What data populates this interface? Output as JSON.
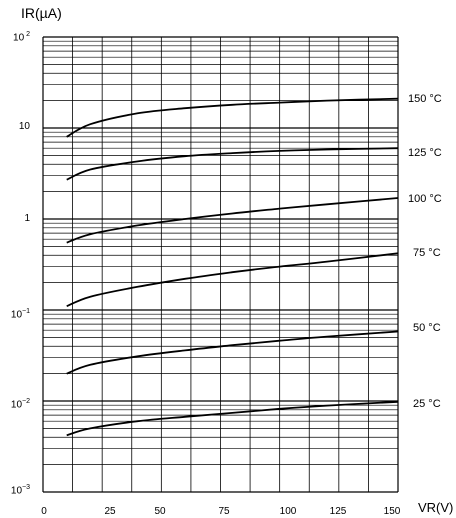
{
  "chart_data": {
    "type": "line",
    "ylabel": "IR(µA)",
    "xlabel": "VR(V)",
    "yscale": "log",
    "xlim": [
      0,
      150
    ],
    "ylim": [
      0.001,
      100
    ],
    "grid": true,
    "x_ticks": [
      "0",
      "25",
      "50",
      "75",
      "100",
      "125",
      "150"
    ],
    "y_ticks": [
      "10 2",
      "10",
      "1",
      "10-1",
      "10-2",
      "10-3"
    ],
    "series": [
      {
        "name": "150 °C",
        "x": [
          10,
          20,
          40,
          60,
          80,
          100,
          120,
          150
        ],
        "values": [
          8,
          11,
          14.5,
          16.5,
          18,
          19,
          20,
          21
        ]
      },
      {
        "name": "125 °C",
        "x": [
          10,
          20,
          40,
          60,
          80,
          100,
          120,
          150
        ],
        "values": [
          2.7,
          3.5,
          4.3,
          4.9,
          5.3,
          5.6,
          5.8,
          6
        ]
      },
      {
        "name": "100 °C",
        "x": [
          10,
          20,
          40,
          60,
          80,
          100,
          120,
          150
        ],
        "values": [
          0.55,
          0.68,
          0.85,
          1.0,
          1.15,
          1.3,
          1.45,
          1.7
        ]
      },
      {
        "name": "75 °C",
        "x": [
          10,
          20,
          40,
          60,
          80,
          100,
          120,
          150
        ],
        "values": [
          0.11,
          0.14,
          0.18,
          0.22,
          0.26,
          0.3,
          0.34,
          0.42
        ]
      },
      {
        "name": "50 °C",
        "x": [
          10,
          20,
          40,
          60,
          80,
          100,
          120,
          150
        ],
        "values": [
          0.02,
          0.025,
          0.031,
          0.036,
          0.041,
          0.046,
          0.051,
          0.058
        ]
      },
      {
        "name": "25 °C",
        "x": [
          10,
          20,
          40,
          60,
          80,
          100,
          120,
          150
        ],
        "values": [
          0.0042,
          0.005,
          0.006,
          0.0067,
          0.0074,
          0.0082,
          0.0089,
          0.0098
        ]
      }
    ]
  }
}
